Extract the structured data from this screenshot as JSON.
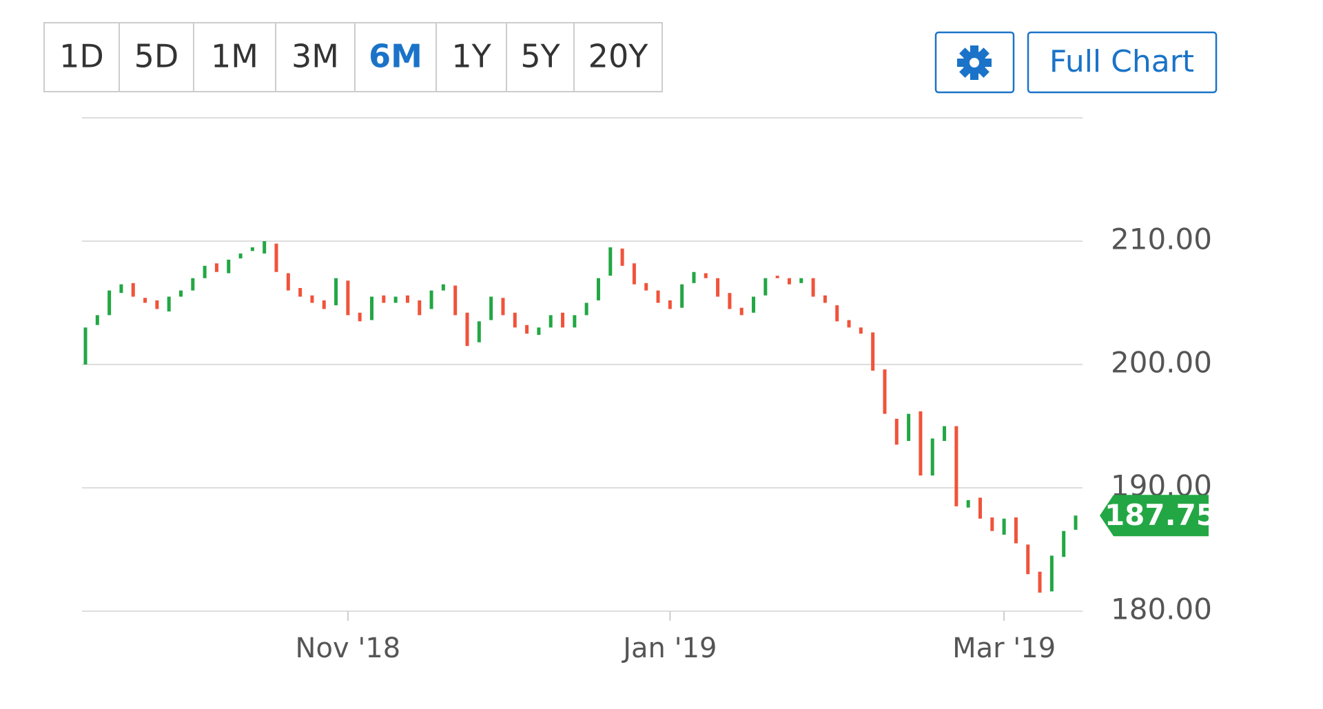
{
  "toolbar": {
    "ranges": [
      "1D",
      "5D",
      "1M",
      "3M",
      "6M",
      "1Y",
      "5Y",
      "20Y"
    ],
    "active_range": 4,
    "full_chart": "Full Chart"
  },
  "chart_data": {
    "type": "candlestick",
    "categories": [
      null,
      null,
      null,
      null,
      null,
      null,
      null,
      null,
      null,
      null,
      null,
      null,
      null,
      null,
      null,
      null,
      null,
      null,
      null,
      null,
      null,
      null,
      null,
      null,
      null,
      null,
      null,
      null,
      null,
      null,
      null,
      null,
      null,
      null,
      null,
      null,
      null,
      null,
      null,
      null,
      null,
      null,
      null,
      null,
      null,
      null,
      null,
      null,
      null,
      null,
      null,
      null,
      null,
      null,
      null,
      null,
      null,
      null,
      null,
      null,
      null,
      null,
      null,
      null,
      null,
      null,
      null,
      null,
      null,
      null,
      null,
      null,
      null,
      null,
      null,
      null,
      null,
      null,
      null,
      null,
      null,
      null,
      null,
      null
    ],
    "open": [
      200,
      203.2,
      204,
      205.8,
      206.6,
      205.4,
      205.2,
      204.3,
      205.5,
      206,
      207,
      208.2,
      207.4,
      208.6,
      209.2,
      209,
      209.8,
      207.4,
      206.2,
      205.6,
      205.2,
      204.8,
      206.8,
      204.2,
      203.6,
      205.6,
      205,
      205.6,
      205.2,
      204.5,
      206,
      206.4,
      204.2,
      201.8,
      203.6,
      205.4,
      204.2,
      203.2,
      202.4,
      203,
      204.2,
      203,
      204,
      205.2,
      207.2,
      209.4,
      208.2,
      206.6,
      206,
      205.2,
      204.6,
      206.6,
      207.4,
      207,
      205.8,
      204.6,
      204.2,
      205.6,
      207.2,
      207,
      206.6,
      207,
      205.6,
      204.8,
      203.6,
      203,
      202.6,
      199.6,
      195.6,
      193.8,
      196.2,
      191,
      193.8,
      195,
      188.4,
      189.2,
      187.6,
      186.2,
      187.6,
      185.4,
      183.2,
      181.6,
      184.4,
      186.6
    ],
    "close": [
      203,
      204,
      206,
      206.5,
      205.5,
      205,
      204.5,
      205.5,
      206,
      207,
      208,
      207.5,
      208.5,
      209,
      209.5,
      210,
      207.5,
      206,
      205.5,
      205,
      204.5,
      207,
      204,
      203.5,
      205.5,
      205,
      205.5,
      205,
      204,
      206,
      206.5,
      204,
      201.5,
      203.5,
      205.5,
      204,
      203,
      202.5,
      203,
      204,
      203,
      204,
      205,
      207,
      209.5,
      208,
      206.5,
      206,
      205,
      204.5,
      206.5,
      207.5,
      207,
      205.5,
      204.5,
      204,
      205.5,
      207,
      207,
      206.5,
      207,
      205.5,
      205,
      203.5,
      203,
      202.5,
      199.5,
      196,
      193.5,
      196,
      191,
      194,
      195,
      188.5,
      189,
      187.5,
      186.5,
      187.5,
      185.5,
      183,
      181.5,
      184.5,
      186.5,
      187.75
    ],
    "up_color": "#22a744",
    "down_color": "#f0533a",
    "ylim": [
      180,
      220
    ],
    "yticks": [
      {
        "value": 180,
        "label": "180.00"
      },
      {
        "value": 190,
        "label": "190.00"
      },
      {
        "value": 200,
        "label": "200.00"
      },
      {
        "value": 210,
        "label": "210.00"
      }
    ],
    "xticks": [
      {
        "value": 22,
        "label": "Nov '18"
      },
      {
        "value": 49,
        "label": "Jan '19"
      },
      {
        "value": 77,
        "label": "Mar '19"
      }
    ],
    "grid": true
  }
}
